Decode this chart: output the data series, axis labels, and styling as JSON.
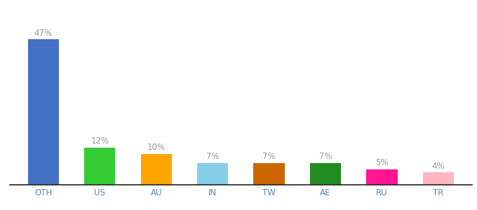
{
  "categories": [
    "OTH",
    "US",
    "AU",
    "IN",
    "TW",
    "AE",
    "RU",
    "TR"
  ],
  "values": [
    47,
    12,
    10,
    7,
    7,
    7,
    5,
    4
  ],
  "bar_colors": [
    "#4472C4",
    "#33CC33",
    "#FFA500",
    "#87CEEB",
    "#CC6600",
    "#228B22",
    "#FF1493",
    "#FFB6C1"
  ],
  "labels": [
    "47%",
    "12%",
    "10%",
    "7%",
    "7%",
    "7%",
    "5%",
    "4%"
  ],
  "ylim": [
    0,
    55
  ],
  "background_color": "#ffffff",
  "label_fontsize": 8.5,
  "tick_fontsize": 8.5,
  "label_color": "#999999",
  "tick_color": "#5588BB",
  "bar_width": 0.55
}
